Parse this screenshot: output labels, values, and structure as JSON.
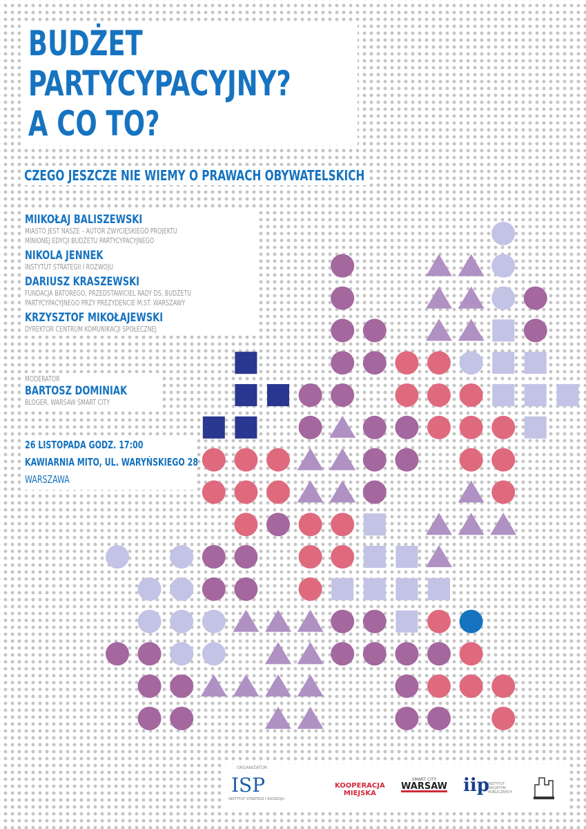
{
  "header": {
    "title_lines": [
      "BUDŻET",
      "PARTYCYPACYJNY?",
      "A CO TO?"
    ],
    "subtitle": "CZEGO JESZCZE NIE WIEMY O PRAWACH OBYWATELSKICH"
  },
  "speakers": [
    {
      "name": "MIIKOŁAJ BALISZEWSKI",
      "roles": [
        "MIASTO JEST NASZE – AUTOR ZWYCIĘSKIEGO PROJEKTU",
        "MINIONEJ EDYCJI BUDŻETU PARTYCYPACYJNEGO"
      ]
    },
    {
      "name": "NIKOLA JENNEK",
      "roles": [
        "INSTYTUT STRATEGII I ROZWOJU"
      ]
    },
    {
      "name": "DARIUSZ KRASZEWSKI",
      "roles": [
        "FUNDACJA BATOREGO, PRZEDSTAWICIEL RADY DS. BUDŻETU",
        "PARTYCYPACYJNEGO PRZY PREZYDENCIE M.ST. WARSZAWY"
      ]
    },
    {
      "name": "KRZYSZTOF MIKOŁAJEWSKI",
      "roles": [
        "DYREKTOR CENTRUM KOMUNIKACJI SPOŁECZNEJ"
      ]
    }
  ],
  "moderator": {
    "label": "MODERATOR",
    "name": "BARTOSZ DOMINIAK",
    "role": "BLOGER, WARSAW SMART CITY"
  },
  "event": {
    "date": "26 LISTOPADA  GODZ. 17:00",
    "place": "KAWIARNIA MITO, UL. WARYŃSKIEGO 28",
    "city": "WARSZAWA"
  },
  "footer": {
    "organizer_label": "ORGANIZATOR",
    "logos": [
      "ISP",
      "INSTYTUT STRATEGII I ROZWOJU",
      "KOOPERACJA",
      "MIEJSKA",
      "SMART CITY",
      "WARSAW",
      "iip",
      "INSTYTUT INICJATYW PUBLICZNYCH"
    ]
  }
}
